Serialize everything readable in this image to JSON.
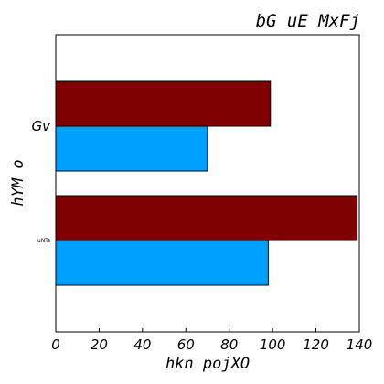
{
  "chart_data": {
    "type": "bar",
    "orientation": "horizontal",
    "title": "bG uE MxFj",
    "xlabel": "hkn pojXO",
    "ylabel": "hYM o",
    "categories": [
      "Gv",
      "uNTs"
    ],
    "series": [
      {
        "color": "#7f0000",
        "values": [
          99,
          139
        ]
      },
      {
        "color": "#00a0ff",
        "values": [
          70,
          98
        ]
      }
    ],
    "xlim": [
      0,
      140
    ],
    "xticks": [
      "0",
      "20",
      "40",
      "60",
      "80",
      "100",
      "120",
      "140"
    ],
    "grid": false,
    "legend": "none"
  }
}
